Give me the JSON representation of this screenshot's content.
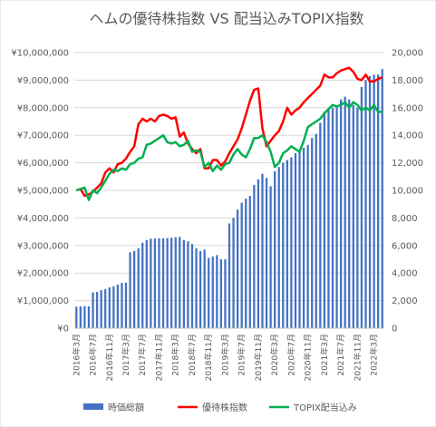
{
  "chart_data": {
    "type": "bar+line",
    "title": "ヘムの優待株指数 VS 配当込みTOPIX指数",
    "x": [
      "2016年3月",
      "2016年4月",
      "2016年5月",
      "2016年6月",
      "2016年7月",
      "2016年8月",
      "2016年9月",
      "2016年10月",
      "2016年11月",
      "2016年12月",
      "2017年1月",
      "2017年2月",
      "2017年3月",
      "2017年4月",
      "2017年5月",
      "2017年6月",
      "2017年7月",
      "2017年8月",
      "2017年9月",
      "2017年10月",
      "2017年11月",
      "2017年12月",
      "2018年1月",
      "2018年2月",
      "2018年3月",
      "2018年4月",
      "2018年5月",
      "2018年6月",
      "2018年7月",
      "2018年8月",
      "2018年9月",
      "2018年10月",
      "2018年11月",
      "2018年12月",
      "2019年1月",
      "2019年2月",
      "2019年3月",
      "2019年4月",
      "2019年5月",
      "2019年6月",
      "2019年7月",
      "2019年8月",
      "2019年9月",
      "2019年10月",
      "2019年11月",
      "2019年12月",
      "2020年1月",
      "2020年2月",
      "2020年3月",
      "2020年4月",
      "2020年5月",
      "2020年6月",
      "2020年7月",
      "2020年8月",
      "2020年9月",
      "2020年10月",
      "2020年11月",
      "2020年12月",
      "2021年1月",
      "2021年2月",
      "2021年3月",
      "2021年4月",
      "2021年5月",
      "2021年6月",
      "2021年7月",
      "2021年8月",
      "2021年9月",
      "2021年10月",
      "2021年11月",
      "2021年12月",
      "2022年1月",
      "2022年2月",
      "2022年3月",
      "2022年4月",
      "2022年5月"
    ],
    "x_tick_labels": [
      "2016年3月",
      "2016年7月",
      "2016年11月",
      "2017年3月",
      "2017年7月",
      "2017年11月",
      "2018年3月",
      "2018年7月",
      "2018年11月",
      "2019年3月",
      "2019年7月",
      "2019年11月",
      "2020年3月",
      "2020年7月",
      "2020年11月",
      "2021年3月",
      "2021年7月",
      "2021年11月",
      "2022年3月"
    ],
    "y_left": {
      "min": 0,
      "max": 10000000,
      "step": 1000000,
      "tick_labels": [
        "¥0",
        "¥1,000,000",
        "¥2,000,000",
        "¥3,000,000",
        "¥4,000,000",
        "¥5,000,000",
        "¥6,000,000",
        "¥7,000,000",
        "¥8,000,000",
        "¥9,000,000",
        "¥10,000,000"
      ]
    },
    "y_right": {
      "min": 0,
      "max": 20000,
      "step": 2000,
      "tick_labels": [
        "0",
        "2,000",
        "4,000",
        "6,000",
        "8,000",
        "10,000",
        "12,000",
        "14,000",
        "16,000",
        "18,000",
        "20,000"
      ]
    },
    "series": [
      {
        "name": "時価総額",
        "type": "bar",
        "axis": "left",
        "color": "#4472c4",
        "values": [
          780000,
          790000,
          800000,
          790000,
          1300000,
          1320000,
          1380000,
          1420000,
          1480000,
          1520000,
          1580000,
          1640000,
          1650000,
          2750000,
          2800000,
          2900000,
          3100000,
          3200000,
          3250000,
          3250000,
          3260000,
          3260000,
          3270000,
          3280000,
          3300000,
          3310000,
          3200000,
          3150000,
          3050000,
          2900000,
          2800000,
          2850000,
          2550000,
          2600000,
          2650000,
          2500000,
          2500000,
          3800000,
          4000000,
          4300000,
          4550000,
          4700000,
          4800000,
          5200000,
          5400000,
          5600000,
          5450000,
          5150000,
          5700000,
          5850000,
          6000000,
          6100000,
          6200000,
          6350000,
          6450000,
          6550000,
          6650000,
          6900000,
          7050000,
          7450000,
          7850000,
          7950000,
          8000000,
          8050000,
          8300000,
          8400000,
          8300000,
          8100000,
          8000000,
          8750000,
          9000000,
          9150000,
          9200000,
          9200000,
          9400000
        ]
      },
      {
        "name": "優待株指数",
        "type": "line",
        "axis": "right",
        "color": "#ff0000",
        "values": [
          10000,
          10100,
          9600,
          9700,
          9900,
          10200,
          10500,
          11300,
          11600,
          11300,
          11900,
          12000,
          12300,
          12800,
          13200,
          14800,
          15200,
          15000,
          15200,
          15000,
          15400,
          15500,
          15400,
          15200,
          15300,
          13900,
          14200,
          13400,
          13000,
          12700,
          13000,
          11600,
          11600,
          12200,
          12200,
          11800,
          12100,
          12700,
          13200,
          13700,
          14500,
          15500,
          16500,
          17300,
          17400,
          14500,
          13200,
          13600,
          14000,
          14300,
          15000,
          16000,
          15500,
          15800,
          16000,
          16400,
          16700,
          17000,
          17300,
          17600,
          18400,
          18200,
          18200,
          18500,
          18700,
          18800,
          18900,
          18600,
          18100,
          18000,
          18400,
          17900,
          17900,
          18100,
          18200
        ]
      },
      {
        "name": "TOPIX配当込み",
        "type": "line",
        "axis": "right",
        "color": "#00b050",
        "values": [
          10000,
          10100,
          10200,
          9300,
          10000,
          9800,
          10200,
          10700,
          11200,
          11500,
          11400,
          11600,
          11500,
          11900,
          12000,
          12300,
          12400,
          13300,
          13400,
          13600,
          13800,
          14000,
          13500,
          13400,
          13500,
          13200,
          13300,
          13600,
          12800,
          12900,
          12800,
          11700,
          12000,
          11400,
          11800,
          11500,
          11900,
          12000,
          12600,
          13000,
          12600,
          12400,
          13000,
          13800,
          13800,
          14000,
          13500,
          12800,
          11700,
          12000,
          12700,
          12900,
          13200,
          13000,
          12800,
          13600,
          14600,
          14800,
          15000,
          15200,
          15600,
          15900,
          16200,
          16100,
          16200,
          16400,
          16000,
          16400,
          16200,
          15800,
          16000,
          15800,
          16200,
          15700,
          15700
        ]
      }
    ],
    "legend_position": "bottom",
    "grid": true
  }
}
